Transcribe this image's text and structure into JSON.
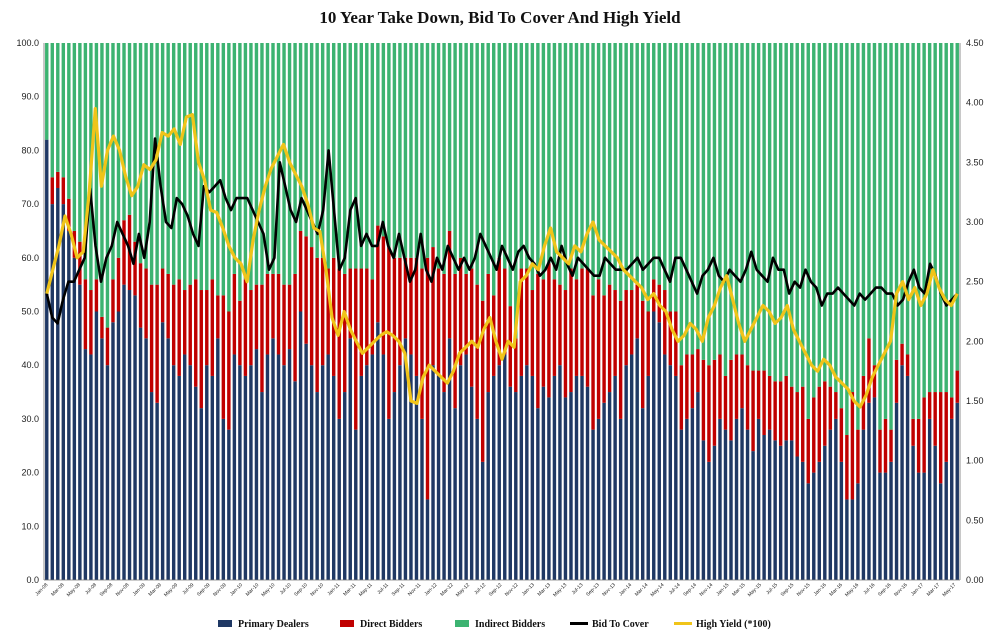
{
  "chart_data": {
    "type": "bar",
    "title": "10 Year Take Down, Bid To Cover And High Yield",
    "stacked": true,
    "ylim": [
      0,
      100
    ],
    "y2lim": [
      0,
      4.5
    ],
    "y_ticks": [
      "0.0",
      "10.0",
      "20.0",
      "30.0",
      "40.0",
      "50.0",
      "60.0",
      "70.0",
      "80.0",
      "90.0",
      "100.0"
    ],
    "y2_ticks": [
      "0.00",
      "0.50",
      "1.00",
      "1.50",
      "2.00",
      "2.50",
      "3.00",
      "3.50",
      "4.00",
      "4.50"
    ],
    "x_tick_labels": [
      "Jan-08",
      "Mar-08",
      "May-08",
      "Jul-08",
      "Sep-08",
      "Nov-08",
      "Jan-09",
      "Mar-09",
      "May-09",
      "Jul-09",
      "Sep-09",
      "Nov-09",
      "Jan-10",
      "Mar-10",
      "May-10",
      "Jul-10",
      "Sep-10",
      "Nov-10",
      "Jan-11",
      "Mar-11",
      "May-11",
      "Jul-11",
      "Sep-11",
      "Nov-11",
      "Jan-12",
      "Mar-12",
      "May-12",
      "Jul-12",
      "Sep-12",
      "Nov-12",
      "Jan-13",
      "Mar-13",
      "May-13",
      "Jul-13",
      "Sep-13",
      "Nov-13",
      "Jan-14",
      "Mar-14",
      "May-14",
      "Jul-14",
      "Sep-14",
      "Nov-14",
      "Jan-15",
      "Mar-15",
      "May-15",
      "Jul-15",
      "Sep-15",
      "Nov-15",
      "Jan-16",
      "Mar-16",
      "May-16",
      "Jul-16",
      "Sep-16",
      "Nov-16",
      "Jan-17",
      "Mar-17",
      "May-17"
    ],
    "legend": [
      "Primary Dealers",
      "Direct Bidders",
      "Indirect Bidders",
      "Bid To Cover",
      "High Yield (*100)"
    ],
    "colors": {
      "primary": "#1f3864",
      "direct": "#c00000",
      "indirect": "#3cb371",
      "btc": "#000000",
      "hy": "#f0c419"
    },
    "series": [
      {
        "name": "Primary Dealers",
        "values": [
          82,
          70,
          73,
          70,
          65,
          60,
          55,
          43,
          42,
          50,
          45,
          40,
          48,
          50,
          55,
          54,
          53,
          47,
          45,
          35,
          33,
          48,
          45,
          40,
          38,
          42,
          40,
          36,
          32,
          40,
          38,
          45,
          30,
          28,
          42,
          40,
          38,
          40,
          43,
          35,
          42,
          45,
          42,
          40,
          43,
          37,
          50,
          44,
          40,
          35,
          40,
          42,
          38,
          30,
          35,
          45,
          28,
          38,
          40,
          42,
          48,
          42,
          30,
          35,
          40,
          45,
          42,
          38,
          30,
          15,
          40,
          38,
          35,
          45,
          32,
          40,
          42,
          36,
          30,
          22,
          35,
          38,
          40,
          42,
          36,
          35,
          38,
          40,
          38,
          32,
          36,
          34,
          38,
          40,
          34,
          35,
          38,
          38,
          36,
          28,
          30,
          33,
          35,
          38,
          30,
          40,
          42,
          45,
          32,
          38,
          50,
          48,
          42,
          40,
          38,
          28,
          30,
          32,
          35,
          26,
          22,
          25,
          30,
          28,
          26,
          30,
          32,
          28,
          24,
          30,
          27,
          28,
          26,
          25,
          26,
          26,
          23,
          22,
          18,
          20,
          22,
          25,
          28,
          30,
          22,
          15,
          15,
          18,
          28,
          33,
          34,
          20,
          20,
          22,
          33,
          40,
          38,
          25,
          20,
          20,
          30,
          25,
          18,
          22,
          30,
          33
        ]
      },
      {
        "name": "Direct Bidders",
        "values": [
          0,
          5,
          3,
          5,
          6,
          5,
          8,
          13,
          12,
          6,
          4,
          7,
          8,
          10,
          12,
          14,
          10,
          12,
          13,
          20,
          22,
          10,
          12,
          15,
          18,
          12,
          15,
          20,
          22,
          14,
          18,
          8,
          23,
          22,
          15,
          12,
          18,
          14,
          12,
          20,
          15,
          12,
          15,
          15,
          12,
          20,
          15,
          20,
          22,
          25,
          20,
          16,
          22,
          28,
          22,
          13,
          30,
          20,
          18,
          14,
          18,
          22,
          32,
          25,
          20,
          15,
          18,
          22,
          28,
          45,
          22,
          20,
          22,
          20,
          25,
          20,
          15,
          22,
          25,
          30,
          22,
          15,
          20,
          16,
          15,
          10,
          20,
          18,
          16,
          25,
          20,
          25,
          18,
          15,
          20,
          23,
          18,
          20,
          22,
          25,
          26,
          20,
          20,
          16,
          22,
          14,
          12,
          10,
          20,
          12,
          6,
          7,
          12,
          10,
          12,
          12,
          12,
          10,
          8,
          15,
          18,
          16,
          12,
          10,
          15,
          12,
          10,
          12,
          15,
          9,
          12,
          10,
          11,
          12,
          12,
          10,
          12,
          14,
          12,
          14,
          14,
          12,
          8,
          5,
          10,
          12,
          20,
          10,
          10,
          12,
          6,
          8,
          10,
          6,
          8,
          4,
          4,
          5,
          10,
          14,
          5,
          10,
          17,
          13,
          4,
          6
        ]
      }
    ],
    "indirect_note": "Indirect Bidders = 100 - Primary Dealers - Direct Bidders",
    "bid_to_cover": [
      2.4,
      2.2,
      2.15,
      2.35,
      2.5,
      2.5,
      2.6,
      2.7,
      3.28,
      2.8,
      2.5,
      2.7,
      2.8,
      3.0,
      2.9,
      2.8,
      2.65,
      2.9,
      2.7,
      3.0,
      3.7,
      3.3,
      3.0,
      2.95,
      3.2,
      3.15,
      3.05,
      2.9,
      2.8,
      3.3,
      3.25,
      3.3,
      3.35,
      3.2,
      3.1,
      3.2,
      3.2,
      3.2,
      3.1,
      3.0,
      2.9,
      2.6,
      2.7,
      3.5,
      3.3,
      3.1,
      3.0,
      3.2,
      3.1,
      3.0,
      2.9,
      3.1,
      3.6,
      3.1,
      2.6,
      2.7,
      3.1,
      3.2,
      2.8,
      2.9,
      2.8,
      2.8,
      3.0,
      2.8,
      2.7,
      2.9,
      2.7,
      2.5,
      2.6,
      2.9,
      2.6,
      2.5,
      2.7,
      2.6,
      2.8,
      2.7,
      2.6,
      2.7,
      2.6,
      2.7,
      2.9,
      2.8,
      2.7,
      2.6,
      2.8,
      2.7,
      2.6,
      2.75,
      2.8,
      2.7,
      2.65,
      2.55,
      2.6,
      2.7,
      2.6,
      2.8,
      2.65,
      2.55,
      2.7,
      2.65,
      2.6,
      2.55,
      2.55,
      2.7,
      2.65,
      2.6,
      2.6,
      2.6,
      2.65,
      2.7,
      2.6,
      2.65,
      2.7,
      2.7,
      2.6,
      2.5,
      2.7,
      2.7,
      2.6,
      2.5,
      2.4,
      2.55,
      2.6,
      2.7,
      2.55,
      2.5,
      2.6,
      2.55,
      2.5,
      2.6,
      2.75,
      2.6,
      2.55,
      2.5,
      2.7,
      2.6,
      2.6,
      2.4,
      2.5,
      2.45,
      2.6,
      2.5,
      2.45,
      2.3,
      2.4,
      2.4,
      2.45,
      2.4,
      2.35,
      2.3,
      2.4,
      2.35,
      2.4,
      2.45,
      2.45,
      2.4,
      2.4,
      2.3,
      2.35,
      2.5,
      2.6,
      2.45,
      2.4,
      2.65,
      2.55,
      2.4,
      2.3,
      2.35,
      2.4
    ],
    "high_yield": [
      2.4,
      2.6,
      2.8,
      3.05,
      2.9,
      2.7,
      2.75,
      3.25,
      3.95,
      3.3,
      3.6,
      3.72,
      3.6,
      3.38,
      3.22,
      3.3,
      3.48,
      3.44,
      3.52,
      3.75,
      3.72,
      3.78,
      3.65,
      3.88,
      3.9,
      3.5,
      3.35,
      3.1,
      3.08,
      2.95,
      2.8,
      2.7,
      2.65,
      2.5,
      2.85,
      3.1,
      3.3,
      3.45,
      3.55,
      3.65,
      3.5,
      3.4,
      3.3,
      3.15,
      2.95,
      2.92,
      2.6,
      2.2,
      2.05,
      2.25,
      2.1,
      2.0,
      1.9,
      1.95,
      2.0,
      2.05,
      2.08,
      2.05,
      2.0,
      1.9,
      1.5,
      1.48,
      1.7,
      1.8,
      1.75,
      1.7,
      1.65,
      1.75,
      1.9,
      1.95,
      2.0,
      1.95,
      2.1,
      2.2,
      2.0,
      1.85,
      2.0,
      1.95,
      2.5,
      2.55,
      2.65,
      2.6,
      2.8,
      2.95,
      2.75,
      2.7,
      2.65,
      2.8,
      2.75,
      2.9,
      3.0,
      2.85,
      2.8,
      2.75,
      2.7,
      2.6,
      2.55,
      2.5,
      2.45,
      2.35,
      2.4,
      2.3,
      2.25,
      2.1,
      2.0,
      2.05,
      2.15,
      2.1,
      2.0,
      2.2,
      2.3,
      2.45,
      2.55,
      2.35,
      2.15,
      2.0,
      2.1,
      2.2,
      2.3,
      2.25,
      2.15,
      2.2,
      2.3,
      2.1,
      2.0,
      1.9,
      1.8,
      1.75,
      1.85,
      1.8,
      1.7,
      1.65,
      1.6,
      1.5,
      1.45,
      1.55,
      1.7,
      1.8,
      1.9,
      2.0,
      2.4,
      2.5,
      2.35,
      2.45,
      2.3,
      2.4,
      2.6,
      2.45,
      2.35,
      2.3,
      2.4
    ]
  }
}
